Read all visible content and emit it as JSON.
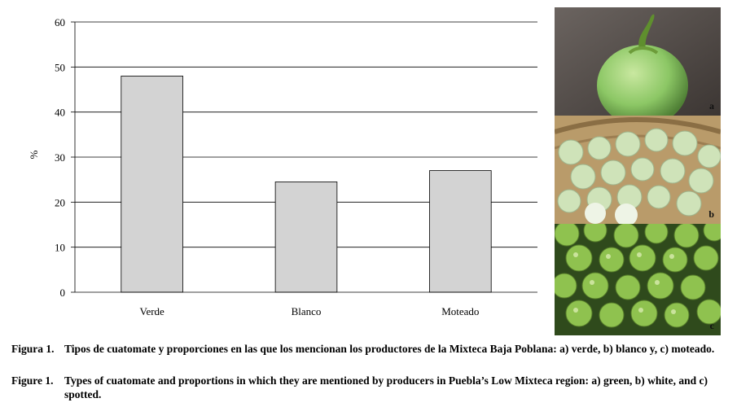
{
  "chart_data": {
    "type": "bar",
    "categories": [
      "Verde",
      "Blanco",
      "Moteado"
    ],
    "values": [
      48,
      24.5,
      27
    ],
    "ylabel": "%",
    "ylim": [
      0,
      60
    ],
    "yticks": [
      0,
      10,
      20,
      30,
      40,
      50,
      60
    ],
    "grid": true,
    "bar_color": "#d3d3d3"
  },
  "photos": [
    {
      "letter": "a",
      "subject": "green-cuatomate-icon"
    },
    {
      "letter": "b",
      "subject": "white-cuatomate-basket-icon"
    },
    {
      "letter": "c",
      "subject": "spotted-cuatomate-pile-icon"
    }
  ],
  "captions": [
    {
      "label": "Figura 1.",
      "text": "Tipos de cuatomate y proporciones en las que los mencionan los productores de la Mixteca Baja Poblana: a) verde, b) blanco y, c) moteado."
    },
    {
      "label": "Figure 1.",
      "text": "Types of cuatomate and proportions in which they are mentioned by producers in Puebla’s Low Mixteca region: a) green, b) white, and c) spotted."
    }
  ]
}
